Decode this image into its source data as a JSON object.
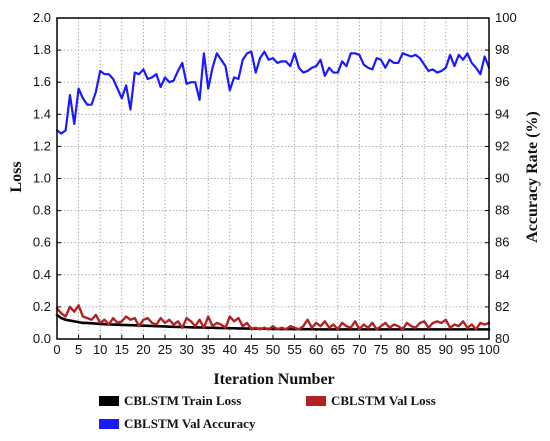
{
  "chart_data": {
    "type": "line",
    "title": "",
    "xlabel": "Iteration Number",
    "ylabel": "Loss",
    "y2label": "Accuracy Rate (%)",
    "xlim": [
      0,
      100
    ],
    "ylim": [
      0,
      2.0
    ],
    "y2lim": [
      80,
      100
    ],
    "xticks": [
      0,
      5,
      10,
      15,
      20,
      25,
      30,
      35,
      40,
      45,
      50,
      55,
      60,
      65,
      70,
      75,
      80,
      85,
      90,
      95,
      100
    ],
    "yticks": [
      "0.0",
      "0.2",
      "0.4",
      "0.6",
      "0.8",
      "1.0",
      "1.2",
      "1.4",
      "1.6",
      "1.8",
      "2.0"
    ],
    "y2ticks": [
      80,
      82,
      84,
      86,
      88,
      90,
      92,
      94,
      96,
      98,
      100
    ],
    "grid": true,
    "legend": "bottom",
    "x": [
      0,
      1,
      2,
      3,
      4,
      5,
      6,
      7,
      8,
      9,
      10,
      11,
      12,
      13,
      14,
      15,
      16,
      17,
      18,
      19,
      20,
      21,
      22,
      23,
      24,
      25,
      26,
      27,
      28,
      29,
      30,
      31,
      32,
      33,
      34,
      35,
      36,
      37,
      38,
      39,
      40,
      41,
      42,
      43,
      44,
      45,
      46,
      47,
      48,
      49,
      50,
      51,
      52,
      53,
      54,
      55,
      56,
      57,
      58,
      59,
      60,
      61,
      62,
      63,
      64,
      65,
      66,
      67,
      68,
      69,
      70,
      71,
      72,
      73,
      74,
      75,
      76,
      77,
      78,
      79,
      80,
      81,
      82,
      83,
      84,
      85,
      86,
      87,
      88,
      89,
      90,
      91,
      92,
      93,
      94,
      95,
      96,
      97,
      98,
      99,
      100
    ],
    "series": [
      {
        "name": "CBLSTM Train Loss",
        "axis": "left",
        "color": "#000000",
        "values": [
          0.15,
          0.13,
          0.12,
          0.115,
          0.11,
          0.105,
          0.1,
          0.1,
          0.098,
          0.096,
          0.094,
          0.092,
          0.091,
          0.09,
          0.089,
          0.088,
          0.087,
          0.086,
          0.085,
          0.084,
          0.083,
          0.082,
          0.081,
          0.08,
          0.079,
          0.078,
          0.077,
          0.076,
          0.075,
          0.075,
          0.074,
          0.073,
          0.072,
          0.072,
          0.071,
          0.07,
          0.07,
          0.069,
          0.068,
          0.068,
          0.067,
          0.067,
          0.066,
          0.066,
          0.065,
          0.065,
          0.064,
          0.064,
          0.064,
          0.063,
          0.063,
          0.063,
          0.062,
          0.062,
          0.062,
          0.062,
          0.061,
          0.061,
          0.061,
          0.061,
          0.06,
          0.06,
          0.06,
          0.06,
          0.06,
          0.06,
          0.06,
          0.06,
          0.06,
          0.06,
          0.06,
          0.06,
          0.06,
          0.06,
          0.06,
          0.06,
          0.06,
          0.06,
          0.06,
          0.06,
          0.06,
          0.06,
          0.06,
          0.06,
          0.06,
          0.06,
          0.06,
          0.06,
          0.06,
          0.06,
          0.06,
          0.06,
          0.06,
          0.06,
          0.06,
          0.06,
          0.06,
          0.06,
          0.06,
          0.06,
          0.06
        ]
      },
      {
        "name": "CBLSTM Val Loss",
        "axis": "left",
        "color": "#b22222",
        "values": [
          0.19,
          0.16,
          0.14,
          0.2,
          0.17,
          0.21,
          0.14,
          0.13,
          0.12,
          0.15,
          0.1,
          0.12,
          0.09,
          0.13,
          0.1,
          0.11,
          0.14,
          0.12,
          0.13,
          0.08,
          0.12,
          0.13,
          0.1,
          0.09,
          0.13,
          0.1,
          0.12,
          0.09,
          0.11,
          0.07,
          0.13,
          0.11,
          0.08,
          0.12,
          0.07,
          0.14,
          0.08,
          0.1,
          0.09,
          0.07,
          0.14,
          0.11,
          0.13,
          0.08,
          0.1,
          0.06,
          0.07,
          0.06,
          0.07,
          0.06,
          0.08,
          0.06,
          0.07,
          0.06,
          0.08,
          0.07,
          0.06,
          0.08,
          0.12,
          0.07,
          0.1,
          0.08,
          0.11,
          0.07,
          0.09,
          0.06,
          0.1,
          0.08,
          0.07,
          0.11,
          0.06,
          0.09,
          0.07,
          0.1,
          0.06,
          0.08,
          0.1,
          0.07,
          0.09,
          0.08,
          0.06,
          0.1,
          0.08,
          0.07,
          0.1,
          0.11,
          0.07,
          0.1,
          0.11,
          0.1,
          0.12,
          0.07,
          0.09,
          0.08,
          0.11,
          0.07,
          0.09,
          0.06,
          0.1,
          0.09,
          0.1
        ]
      },
      {
        "name": "CBLSTM Val Accuracy",
        "axis": "right",
        "color": "#1a1aff",
        "values": [
          93.0,
          92.8,
          93.0,
          95.2,
          93.4,
          95.6,
          95.0,
          94.6,
          94.6,
          95.4,
          96.7,
          96.5,
          96.5,
          96.2,
          95.6,
          95.0,
          95.8,
          94.3,
          96.6,
          96.5,
          96.8,
          96.2,
          96.3,
          96.5,
          95.7,
          96.3,
          96.0,
          96.1,
          96.7,
          97.2,
          95.9,
          96.0,
          96.0,
          94.9,
          97.8,
          95.6,
          96.9,
          97.8,
          97.4,
          97.0,
          95.5,
          96.3,
          96.2,
          97.4,
          97.8,
          97.9,
          96.6,
          97.5,
          97.9,
          97.4,
          97.5,
          97.2,
          97.3,
          97.3,
          97.0,
          97.8,
          96.9,
          96.6,
          96.7,
          96.9,
          97.0,
          97.4,
          96.4,
          96.9,
          96.6,
          96.6,
          97.3,
          97.0,
          97.8,
          97.8,
          97.7,
          97.1,
          96.9,
          96.8,
          97.5,
          97.4,
          96.9,
          97.4,
          97.2,
          97.2,
          97.8,
          97.7,
          97.6,
          97.7,
          97.5,
          97.1,
          96.7,
          96.8,
          96.6,
          96.7,
          96.9,
          97.7,
          97.0,
          97.7,
          97.4,
          97.8,
          97.2,
          96.9,
          96.5,
          97.6,
          96.9
        ]
      }
    ]
  }
}
